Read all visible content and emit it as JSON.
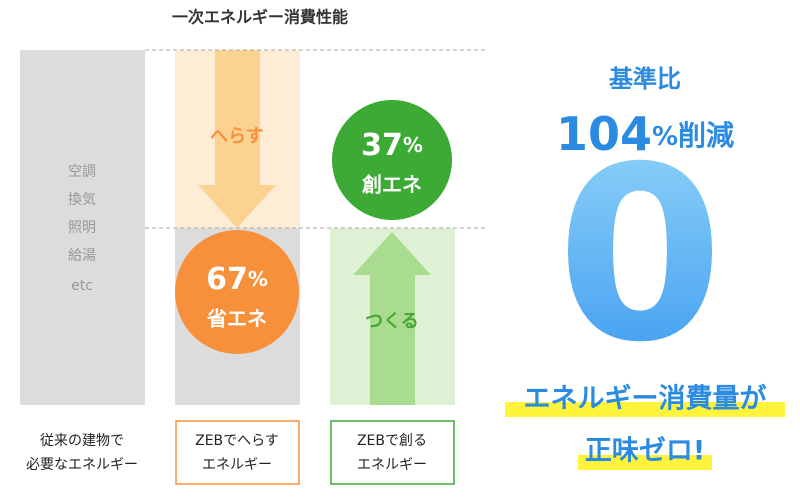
{
  "title": "一次エネルギー消費性能",
  "baseline": {
    "items": [
      "空調",
      "換気",
      "照明",
      "給湯",
      "etc"
    ],
    "caption": [
      "従来の建物で",
      "必要なエネルギー"
    ]
  },
  "reduce": {
    "arrow_label": "へらす",
    "value": "67",
    "unit": "%",
    "name": "省エネ",
    "caption": [
      "ZEBでへらす",
      "エネルギー"
    ]
  },
  "create": {
    "arrow_label": "つくる",
    "value": "37",
    "unit": "%",
    "name": "創エネ",
    "caption": [
      "ZEBで創る",
      "エネルギー"
    ]
  },
  "summary": {
    "lead": "基準比",
    "value": "104",
    "unit": "%",
    "suffix": "削減",
    "big": "0",
    "line1": "エネルギー消費量が",
    "line2": "正味ゼロ!"
  }
}
